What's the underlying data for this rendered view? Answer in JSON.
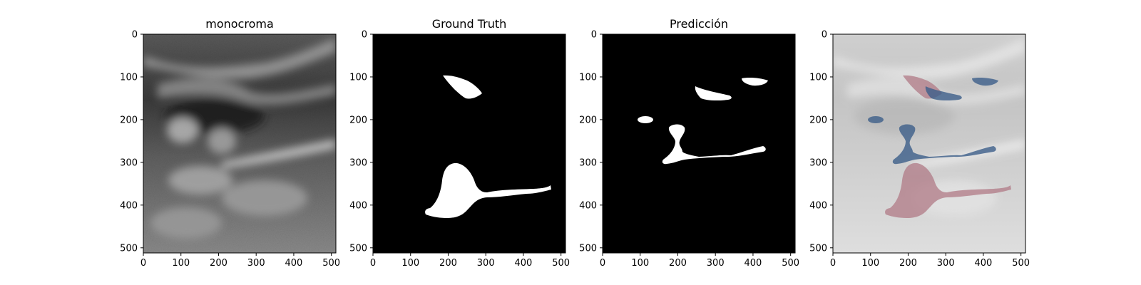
{
  "panels": [
    {
      "id": "mono",
      "title": "monocroma",
      "kind": "ultrasound"
    },
    {
      "id": "gt",
      "title": "Ground Truth",
      "kind": "mask-gt"
    },
    {
      "id": "pred",
      "title": "Predicción",
      "kind": "mask-pred"
    },
    {
      "id": "overlay",
      "title": "",
      "kind": "overlay"
    }
  ],
  "axes": {
    "x_ticks": [
      0,
      100,
      200,
      300,
      400,
      500
    ],
    "y_ticks": [
      0,
      100,
      200,
      300,
      400,
      500
    ],
    "x_range": [
      0,
      512
    ],
    "y_range": [
      0,
      512
    ]
  },
  "colors": {
    "mask_fill": "#ffffff",
    "mask_background": "#000000",
    "overlay_truth": "#b07a86",
    "overlay_prediction": "#3d5f8a",
    "overlay_intersection": "#2a2550"
  }
}
